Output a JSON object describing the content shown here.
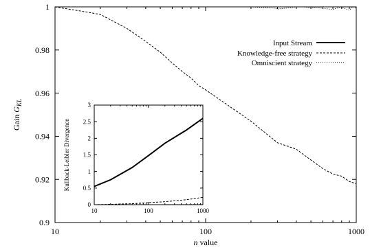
{
  "chart_data": [
    {
      "type": "line",
      "x_scale": "log",
      "xlim": [
        10,
        1000
      ],
      "ylim": [
        0.9,
        1.0
      ],
      "xlabel": "n value",
      "ylabel": "Gain G_KL",
      "x_ticks": [
        10,
        100,
        1000
      ],
      "x_tick_labels": [
        "10",
        "100",
        "1000"
      ],
      "y_ticks": [
        0.9,
        0.92,
        0.94,
        0.96,
        0.98,
        1.0
      ],
      "y_tick_labels": [
        "0.9",
        "0.92",
        "0.94",
        "0.96",
        "0.98",
        "1"
      ],
      "legend_position": "top-right",
      "series": [
        {
          "name": "Input Stream",
          "style": "solid",
          "x": [],
          "y": []
        },
        {
          "name": "Knowledge-free strategy",
          "style": "dashed",
          "x": [
            10,
            15,
            20,
            30,
            40,
            50,
            60,
            70,
            80,
            90,
            100,
            200,
            300,
            400,
            500,
            600,
            700,
            800,
            900,
            1000
          ],
          "y": [
            1.0,
            0.998,
            0.9965,
            0.99,
            0.984,
            0.979,
            0.974,
            0.97,
            0.967,
            0.9635,
            0.9615,
            0.947,
            0.937,
            0.934,
            0.929,
            0.925,
            0.9225,
            0.9215,
            0.919,
            0.918
          ]
        },
        {
          "name": "Omniscient strategy",
          "style": "dotted",
          "x": [
            10,
            100,
            200,
            280,
            300,
            350,
            400,
            450,
            500,
            550,
            600,
            650,
            700,
            750,
            800,
            850,
            900,
            950,
            1000
          ],
          "y": [
            1.0,
            1.0,
            1.0,
            0.9995,
            0.999,
            0.9995,
            1.0,
            1.0,
            0.9995,
            0.9998,
            0.9993,
            0.999,
            0.9988,
            0.9995,
            1.0,
            0.999,
            0.9985,
            1.0,
            0.9995
          ]
        }
      ]
    },
    {
      "type": "line",
      "x_scale": "log",
      "xlim": [
        10,
        1000
      ],
      "ylim": [
        0,
        3
      ],
      "xlabel": "",
      "ylabel": "Kullback-Leibler Divergence",
      "x_ticks": [
        10,
        100,
        1000
      ],
      "x_tick_labels": [
        "10",
        "100",
        "1000"
      ],
      "y_ticks": [
        0,
        0.5,
        1,
        1.5,
        2,
        2.5,
        3
      ],
      "y_tick_labels": [
        "0",
        "0.5",
        "1",
        "1.5",
        "2",
        "2.5",
        "3"
      ],
      "series": [
        {
          "name": "Input Stream",
          "style": "solid",
          "x": [
            10,
            20,
            50,
            100,
            200,
            500,
            1000
          ],
          "y": [
            0.55,
            0.75,
            1.12,
            1.48,
            1.85,
            2.25,
            2.6
          ]
        },
        {
          "name": "Knowledge-free strategy",
          "style": "dashed",
          "x": [
            10,
            20,
            50,
            100,
            200,
            500,
            1000
          ],
          "y": [
            0.0,
            0.01,
            0.03,
            0.06,
            0.09,
            0.15,
            0.22
          ]
        },
        {
          "name": "Omniscient strategy",
          "style": "dotted",
          "x": [
            10,
            100,
            1000
          ],
          "y": [
            0.0,
            0.0,
            0.005
          ]
        }
      ]
    }
  ]
}
